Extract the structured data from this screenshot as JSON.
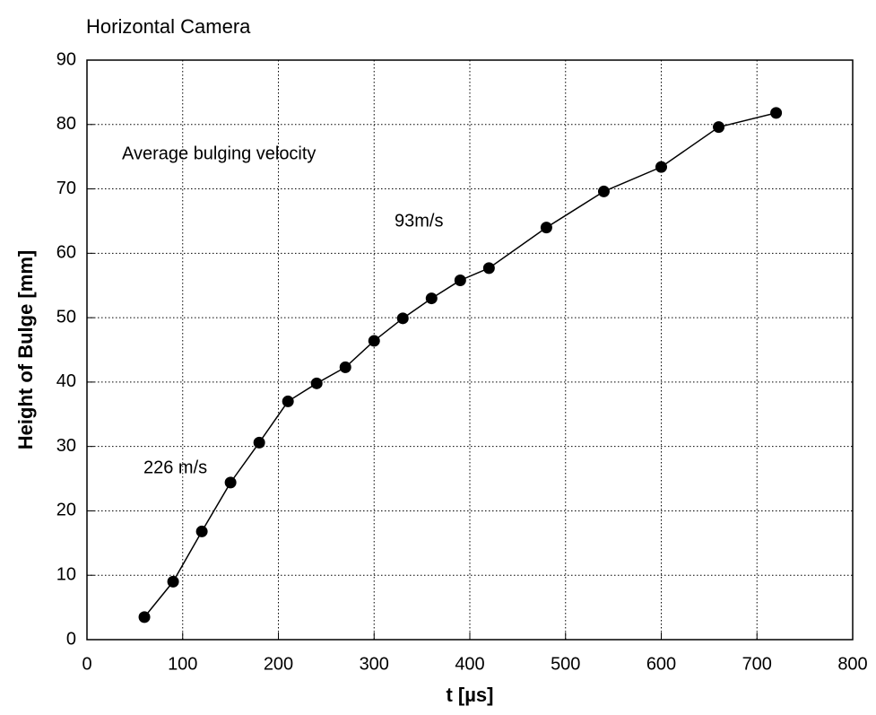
{
  "chart_data": {
    "type": "line",
    "title": "Horizontal Camera",
    "x_label": "t [µs]",
    "y_label": "Height of Bulge [mm]",
    "annotations": [
      "Average bulging velocity",
      "93m/s",
      "226 m/s"
    ],
    "x": [
      60,
      90,
      120,
      150,
      180,
      210,
      240,
      270,
      300,
      330,
      360,
      390,
      420,
      480,
      540,
      600,
      660,
      720
    ],
    "series": [
      {
        "name": "Height of Bulge",
        "color": "#000000",
        "values": [
          3.5,
          9,
          16.8,
          24.4,
          30.6,
          37,
          39.8,
          42.3,
          46.4,
          49.9,
          53,
          55.8,
          57.7,
          64,
          69.6,
          73.4,
          79.6,
          81.8
        ]
      }
    ],
    "xlim": [
      0,
      800
    ],
    "xticks": [
      0,
      100,
      200,
      300,
      400,
      500,
      600,
      700,
      800
    ],
    "ylim": [
      0,
      90
    ],
    "yticks": [
      0,
      10,
      20,
      30,
      40,
      50,
      60,
      70,
      80,
      90
    ],
    "grid": true
  }
}
